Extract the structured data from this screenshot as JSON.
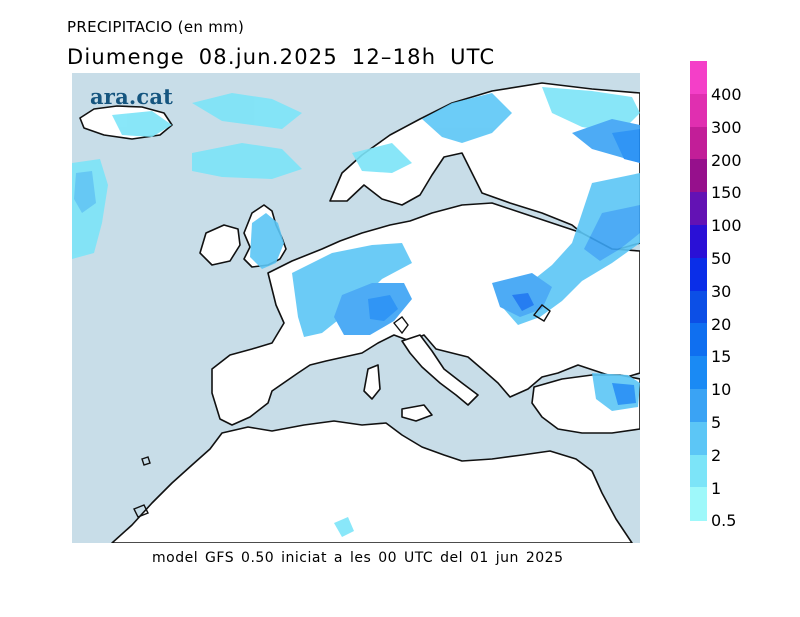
{
  "header": {
    "title": "PRECIPITACIO (en mm)",
    "subtitle": "Diumenge  08.jun.2025  12–18h  UTC"
  },
  "logo": {
    "text": "ara.cat"
  },
  "footer": {
    "text": "model  GFS  0.50  iniciat  a  les  00  UTC  del  01  jun  2025"
  },
  "legend": {
    "unit": "mm",
    "levels": [
      {
        "label": "400",
        "color": "#f43fc8"
      },
      {
        "label": "300",
        "color": "#e02fb0"
      },
      {
        "label": "200",
        "color": "#c21e98"
      },
      {
        "label": "150",
        "color": "#96108c"
      },
      {
        "label": "100",
        "color": "#6312b4"
      },
      {
        "label": "50",
        "color": "#2a10d6"
      },
      {
        "label": "30",
        "color": "#0a2ee8"
      },
      {
        "label": "20",
        "color": "#0c4fe6"
      },
      {
        "label": "15",
        "color": "#0f6ff0"
      },
      {
        "label": "10",
        "color": "#1a8af4"
      },
      {
        "label": "5",
        "color": "#3aa3f4"
      },
      {
        "label": "2",
        "color": "#5cc6f6"
      },
      {
        "label": "1",
        "color": "#7ce4f8"
      },
      {
        "label": "0.5",
        "color": "#9ef8fa"
      }
    ]
  },
  "map": {
    "ocean_color": "#c8dde8",
    "land_color": "#ffffff",
    "coast_color": "#111111"
  }
}
